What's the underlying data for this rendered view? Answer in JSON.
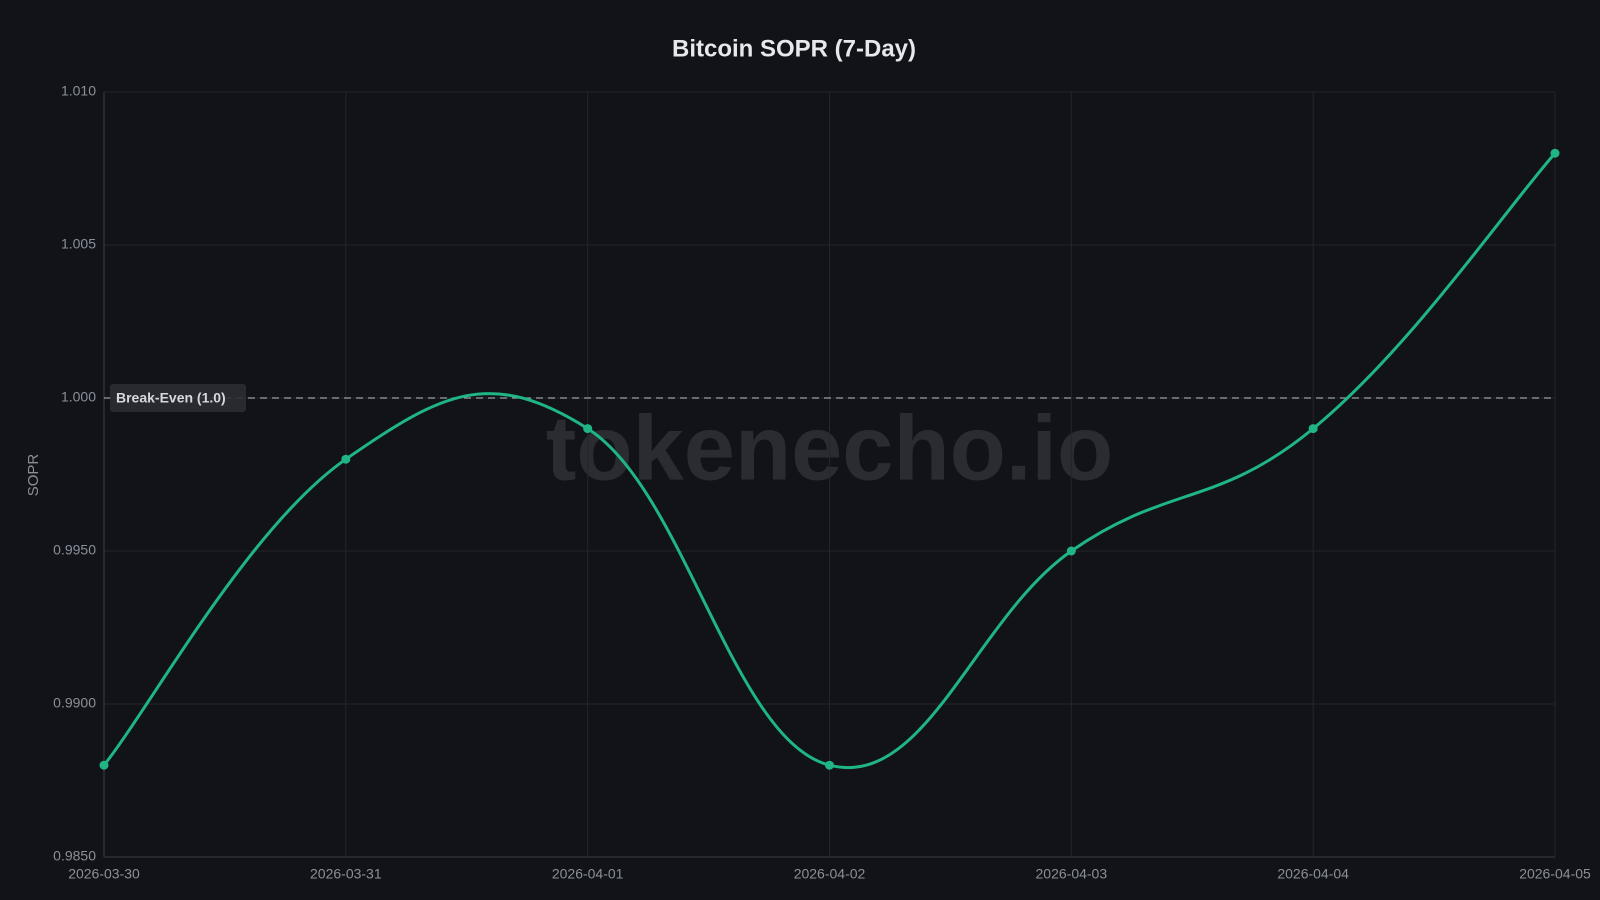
{
  "chart_data": {
    "type": "line",
    "title": "Bitcoin SOPR (7-Day)",
    "ylabel": "SOPR",
    "watermark": "tokenecho.io",
    "categories": [
      "2026-03-30",
      "2026-03-31",
      "2026-04-01",
      "2026-04-02",
      "2026-04-03",
      "2026-04-04",
      "2026-04-05"
    ],
    "series": [
      {
        "name": "SOPR",
        "color": "#1fb585",
        "values": [
          0.988,
          0.998,
          0.999,
          0.988,
          0.995,
          0.999,
          1.008
        ]
      }
    ],
    "ylim": [
      0.985,
      1.01
    ],
    "yticks": [
      {
        "value": 0.985,
        "label": "0.9850"
      },
      {
        "value": 0.99,
        "label": "0.9900"
      },
      {
        "value": 0.995,
        "label": "0.9950"
      },
      {
        "value": 1.0,
        "label": "1.000"
      },
      1.005,
      {
        "value": 1.01,
        "label": "1.010"
      }
    ],
    "grid": true,
    "annotations": [
      {
        "label": "Break-Even (1.0)",
        "value": 1.0
      }
    ]
  }
}
